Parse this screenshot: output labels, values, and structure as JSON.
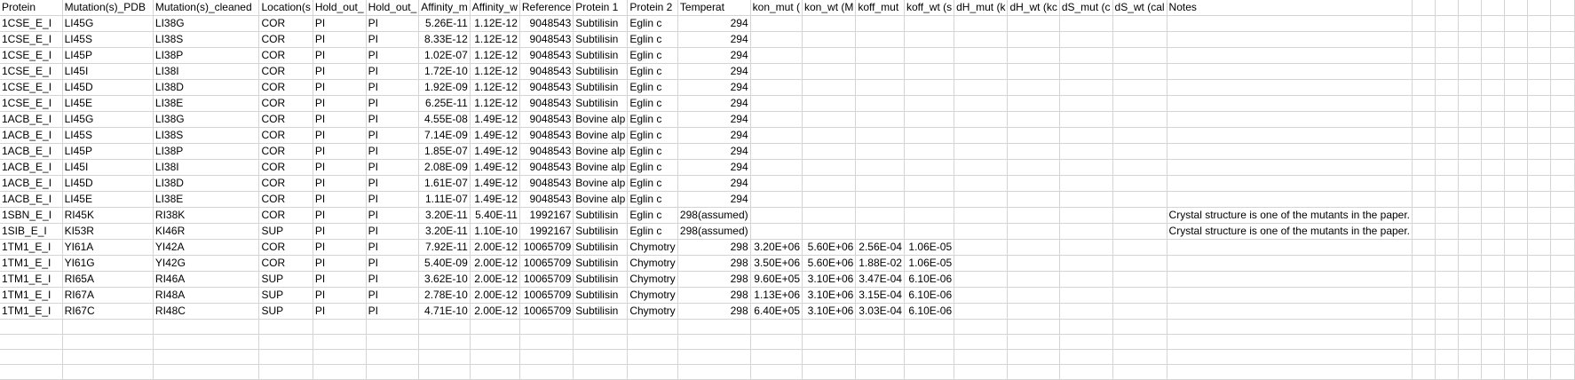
{
  "headers": [
    "Protein",
    "Mutation(s)_PDB",
    "Mutation(s)_cleaned",
    "Location(s",
    "Hold_out_",
    "Hold_out_",
    "Affinity_m",
    "Affinity_w",
    "Reference",
    "Protein 1",
    "Protein 2",
    "Temperat",
    "kon_mut (",
    "kon_wt (M",
    "koff_mut",
    "koff_wt (s",
    "dH_mut (k",
    "dH_wt (kc",
    "dS_mut (c",
    "dS_wt (cal",
    "Notes"
  ],
  "rows": [
    [
      "1CSE_E_I",
      "LI45G",
      "LI38G",
      "COR",
      "PI",
      "PI",
      "5.26E-11",
      "1.12E-12",
      "9048543",
      "Subtilisin",
      "Eglin c",
      "294",
      "",
      "",
      "",
      "",
      "",
      "",
      "",
      "",
      ""
    ],
    [
      "1CSE_E_I",
      "LI45S",
      "LI38S",
      "COR",
      "PI",
      "PI",
      "8.33E-12",
      "1.12E-12",
      "9048543",
      "Subtilisin",
      "Eglin c",
      "294",
      "",
      "",
      "",
      "",
      "",
      "",
      "",
      "",
      ""
    ],
    [
      "1CSE_E_I",
      "LI45P",
      "LI38P",
      "COR",
      "PI",
      "PI",
      "1.02E-07",
      "1.12E-12",
      "9048543",
      "Subtilisin",
      "Eglin c",
      "294",
      "",
      "",
      "",
      "",
      "",
      "",
      "",
      "",
      ""
    ],
    [
      "1CSE_E_I",
      "LI45I",
      "LI38I",
      "COR",
      "PI",
      "PI",
      "1.72E-10",
      "1.12E-12",
      "9048543",
      "Subtilisin",
      "Eglin c",
      "294",
      "",
      "",
      "",
      "",
      "",
      "",
      "",
      "",
      ""
    ],
    [
      "1CSE_E_I",
      "LI45D",
      "LI38D",
      "COR",
      "PI",
      "PI",
      "1.92E-09",
      "1.12E-12",
      "9048543",
      "Subtilisin",
      "Eglin c",
      "294",
      "",
      "",
      "",
      "",
      "",
      "",
      "",
      "",
      ""
    ],
    [
      "1CSE_E_I",
      "LI45E",
      "LI38E",
      "COR",
      "PI",
      "PI",
      "6.25E-11",
      "1.12E-12",
      "9048543",
      "Subtilisin",
      "Eglin c",
      "294",
      "",
      "",
      "",
      "",
      "",
      "",
      "",
      "",
      ""
    ],
    [
      "1ACB_E_I",
      "LI45G",
      "LI38G",
      "COR",
      "PI",
      "PI",
      "4.55E-08",
      "1.49E-12",
      "9048543",
      "Bovine alp",
      "Eglin c",
      "294",
      "",
      "",
      "",
      "",
      "",
      "",
      "",
      "",
      ""
    ],
    [
      "1ACB_E_I",
      "LI45S",
      "LI38S",
      "COR",
      "PI",
      "PI",
      "7.14E-09",
      "1.49E-12",
      "9048543",
      "Bovine alp",
      "Eglin c",
      "294",
      "",
      "",
      "",
      "",
      "",
      "",
      "",
      "",
      ""
    ],
    [
      "1ACB_E_I",
      "LI45P",
      "LI38P",
      "COR",
      "PI",
      "PI",
      "1.85E-07",
      "1.49E-12",
      "9048543",
      "Bovine alp",
      "Eglin c",
      "294",
      "",
      "",
      "",
      "",
      "",
      "",
      "",
      "",
      ""
    ],
    [
      "1ACB_E_I",
      "LI45I",
      "LI38I",
      "COR",
      "PI",
      "PI",
      "2.08E-09",
      "1.49E-12",
      "9048543",
      "Bovine alp",
      "Eglin c",
      "294",
      "",
      "",
      "",
      "",
      "",
      "",
      "",
      "",
      ""
    ],
    [
      "1ACB_E_I",
      "LI45D",
      "LI38D",
      "COR",
      "PI",
      "PI",
      "1.61E-07",
      "1.49E-12",
      "9048543",
      "Bovine alp",
      "Eglin c",
      "294",
      "",
      "",
      "",
      "",
      "",
      "",
      "",
      "",
      ""
    ],
    [
      "1ACB_E_I",
      "LI45E",
      "LI38E",
      "COR",
      "PI",
      "PI",
      "1.11E-07",
      "1.49E-12",
      "9048543",
      "Bovine alp",
      "Eglin c",
      "294",
      "",
      "",
      "",
      "",
      "",
      "",
      "",
      "",
      ""
    ],
    [
      "1SBN_E_I",
      "RI45K",
      "RI38K",
      "COR",
      "PI",
      "PI",
      "3.20E-11",
      "5.40E-11",
      "1992167",
      "Subtilisin",
      "Eglin c",
      "298(assumed)",
      "",
      "",
      "",
      "",
      "",
      "",
      "",
      "",
      "Crystal structure is one of the mutants in the paper."
    ],
    [
      "1SIB_E_I",
      "KI53R",
      "KI46R",
      "SUP",
      "PI",
      "PI",
      "3.20E-11",
      "1.10E-10",
      "1992167",
      "Subtilisin",
      "Eglin c",
      "298(assumed)",
      "",
      "",
      "",
      "",
      "",
      "",
      "",
      "",
      "Crystal structure is one of the mutants in the paper."
    ],
    [
      "1TM1_E_I",
      "YI61A",
      "YI42A",
      "COR",
      "PI",
      "PI",
      "7.92E-11",
      "2.00E-12",
      "10065709",
      "Subtilisin",
      "Chymotry",
      "298",
      "3.20E+06",
      "5.60E+06",
      "2.56E-04",
      "1.06E-05",
      "",
      "",
      "",
      "",
      ""
    ],
    [
      "1TM1_E_I",
      "YI61G",
      "YI42G",
      "COR",
      "PI",
      "PI",
      "5.40E-09",
      "2.00E-12",
      "10065709",
      "Subtilisin",
      "Chymotry",
      "298",
      "3.50E+06",
      "5.60E+06",
      "1.88E-02",
      "1.06E-05",
      "",
      "",
      "",
      "",
      ""
    ],
    [
      "1TM1_E_I",
      "RI65A",
      "RI46A",
      "SUP",
      "PI",
      "PI",
      "3.62E-10",
      "2.00E-12",
      "10065709",
      "Subtilisin",
      "Chymotry",
      "298",
      "9.60E+05",
      "3.10E+06",
      "3.47E-04",
      "6.10E-06",
      "",
      "",
      "",
      "",
      ""
    ],
    [
      "1TM1_E_I",
      "RI67A",
      "RI48A",
      "SUP",
      "PI",
      "PI",
      "2.78E-10",
      "2.00E-12",
      "10065709",
      "Subtilisin",
      "Chymotry",
      "298",
      "1.13E+06",
      "3.10E+06",
      "3.15E-04",
      "6.10E-06",
      "",
      "",
      "",
      "",
      ""
    ],
    [
      "1TM1_E_I",
      "RI67C",
      "RI48C",
      "SUP",
      "PI",
      "PI",
      "4.71E-10",
      "2.00E-12",
      "10065709",
      "Subtilisin",
      "Chymotry",
      "298",
      "6.40E+05",
      "3.10E+06",
      "3.03E-04",
      "6.10E-06",
      "",
      "",
      "",
      "",
      ""
    ],
    [
      "",
      "",
      "",
      "",
      "",
      "",
      "",
      "",
      "",
      "",
      "",
      "",
      "",
      "",
      "",
      "",
      "",
      "",
      "",
      "",
      ""
    ],
    [
      "",
      "",
      "",
      "",
      "",
      "",
      "",
      "",
      "",
      "",
      "",
      "",
      "",
      "",
      "",
      "",
      "",
      "",
      "",
      "",
      ""
    ],
    [
      "",
      "",
      "",
      "",
      "",
      "",
      "",
      "",
      "",
      "",
      "",
      "",
      "",
      "",
      "",
      "",
      "",
      "",
      "",
      "",
      ""
    ],
    [
      "",
      "",
      "",
      "",
      "",
      "",
      "",
      "",
      "",
      "",
      "",
      "",
      "",
      "",
      "",
      "",
      "",
      "",
      "",
      "",
      ""
    ]
  ]
}
